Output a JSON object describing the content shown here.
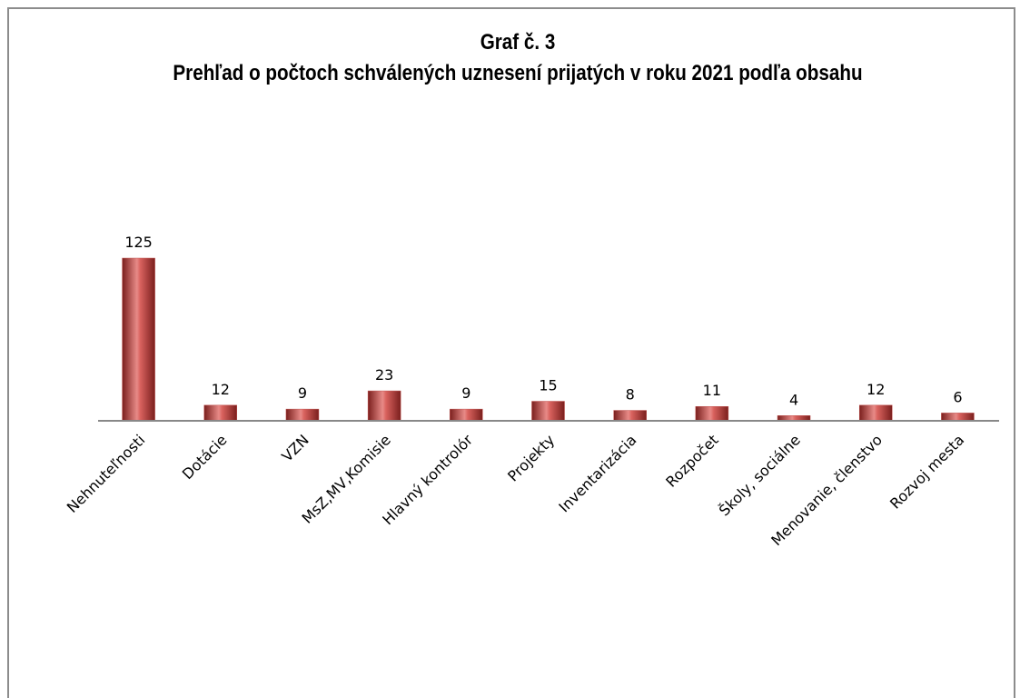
{
  "chart_data": {
    "type": "bar",
    "title": "Graf č. 3",
    "subtitle": "Prehľad o počtoch schválených uznesení prijatých v roku 2021 podľa obsahu",
    "categories": [
      "Nehnuteľnosti",
      "Dotácie",
      "VZN",
      "MsZ,MV,Komisie",
      "Hlavný kontrolór",
      "Projekty",
      "Inventarizácia",
      "Rozpočet",
      "Školy, sociálne",
      "Menovanie, členstvo",
      "Rozvoj mesta"
    ],
    "values": [
      125,
      12,
      9,
      23,
      9,
      15,
      8,
      11,
      4,
      12,
      6
    ],
    "color": "#c0504d"
  }
}
